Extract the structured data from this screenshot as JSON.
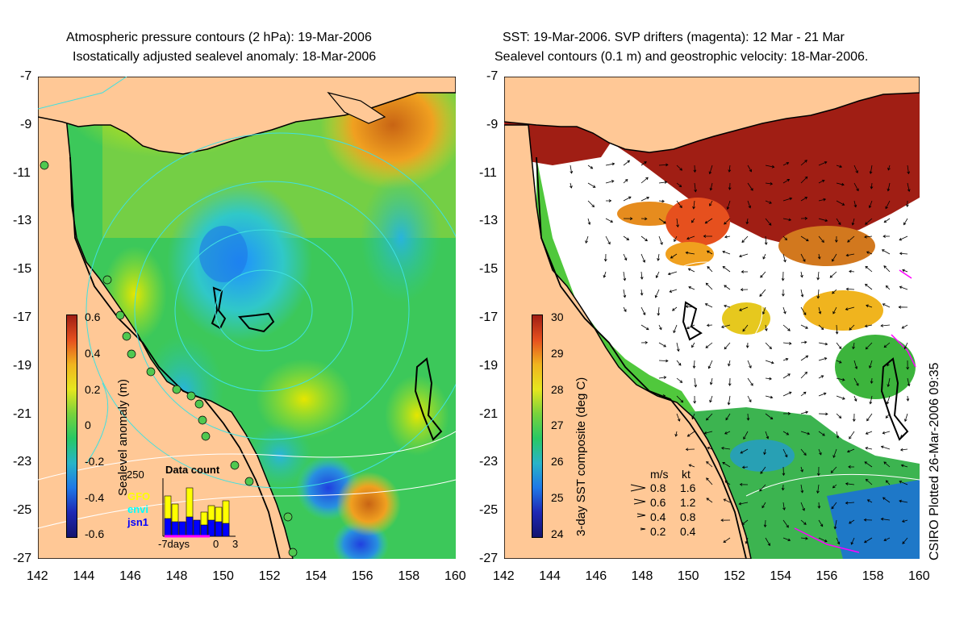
{
  "left_panel": {
    "title_line1": "Atmospheric pressure contours (2 hPa): 19-Mar-2006",
    "title_line2": "Isostatically adjusted sealevel anomaly: 18-Mar-2006",
    "colorbar_label": "Sealevel anomaly (m)",
    "colorbar_ticks": [
      "0.6",
      "0.4",
      "0.2",
      "0",
      "-0.2",
      "-0.4",
      "-0.6"
    ],
    "inset": {
      "title": "Data count",
      "ymax": "250",
      "legend": [
        "GFO",
        "envi",
        "jsn1"
      ],
      "legend_colors": [
        "#ffff00",
        "#00ffff",
        "#0000ff"
      ],
      "xticks": [
        "-7days",
        "0",
        "3"
      ]
    }
  },
  "right_panel": {
    "title_line1": "SST: 19-Mar-2006. SVP drifters (magenta): 12 Mar - 21 Mar",
    "title_line2": "Sealevel contours (0.1 m) and geostrophic velocity: 18-Mar-2006.",
    "colorbar_label": "3-day SST composite (deg C)",
    "colorbar_ticks": [
      "30",
      "29",
      "28",
      "27",
      "26",
      "25",
      "24"
    ],
    "velocity_legend": {
      "header_ms": "m/s",
      "header_kt": "kt",
      "rows": [
        {
          "ms": "0.8",
          "kt": "1.6"
        },
        {
          "ms": "0.6",
          "kt": "1.2"
        },
        {
          "ms": "0.4",
          "kt": "0.8"
        },
        {
          "ms": "0.2",
          "kt": "0.4"
        }
      ]
    }
  },
  "axes": {
    "y_ticks": [
      "-7",
      "-9",
      "-11",
      "-13",
      "-15",
      "-17",
      "-19",
      "-21",
      "-23",
      "-25",
      "-27"
    ],
    "x_ticks": [
      "142",
      "144",
      "146",
      "148",
      "150",
      "152",
      "154",
      "156",
      "158",
      "160"
    ]
  },
  "credit": "CSIRO Plotted 26-Mar-2006 09:35",
  "colors": {
    "land": "#ffc896",
    "coast": "#000000",
    "pressure_contour": "#40e0e0",
    "drifters": "#ff00ff"
  }
}
